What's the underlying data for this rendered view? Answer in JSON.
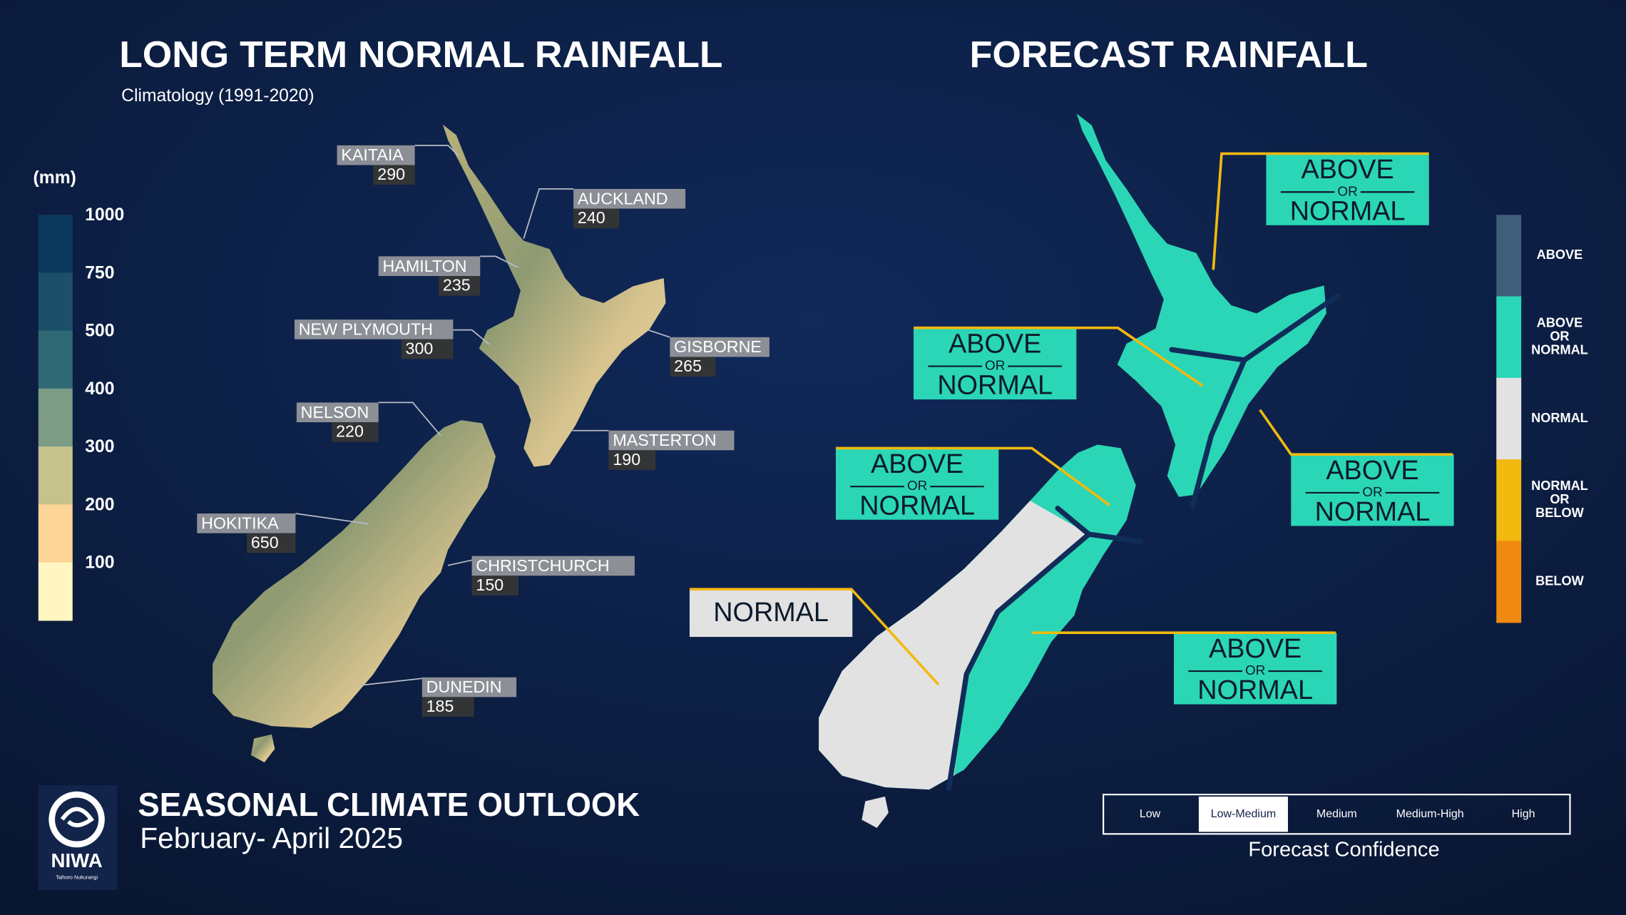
{
  "left_panel": {
    "title": "LONG TERM NORMAL RAINFALL",
    "subtitle": "Climatology (1991-2020)",
    "legend": {
      "unit": "(mm)",
      "ticks": [
        1000,
        750,
        500,
        400,
        300,
        200,
        100
      ],
      "colors": [
        "#0d3a5c",
        "#1b5068",
        "#2f6a74",
        "#7d9c86",
        "#c6c28c",
        "#fdd597",
        "#fff6c2"
      ]
    },
    "cities": [
      {
        "name": "KAITAIA",
        "rainfall": 290
      },
      {
        "name": "AUCKLAND",
        "rainfall": 240
      },
      {
        "name": "HAMILTON",
        "rainfall": 235
      },
      {
        "name": "NEW PLYMOUTH",
        "rainfall": 300
      },
      {
        "name": "GISBORNE",
        "rainfall": 265
      },
      {
        "name": "NELSON",
        "rainfall": 220
      },
      {
        "name": "MASTERTON",
        "rainfall": 190
      },
      {
        "name": "HOKITIKA",
        "rainfall": 650
      },
      {
        "name": "CHRISTCHURCH",
        "rainfall": 150
      },
      {
        "name": "DUNEDIN",
        "rainfall": 185
      }
    ]
  },
  "right_panel": {
    "title": "FORECAST RAINFALL",
    "regions": [
      {
        "lines": [
          "ABOVE",
          "OR",
          "NORMAL"
        ],
        "color": "#2ad6b5"
      },
      {
        "lines": [
          "ABOVE",
          "OR",
          "NORMAL"
        ],
        "color": "#2ad6b5"
      },
      {
        "lines": [
          "ABOVE",
          "OR",
          "NORMAL"
        ],
        "color": "#2ad6b5"
      },
      {
        "lines": [
          "ABOVE",
          "OR",
          "NORMAL"
        ],
        "color": "#2ad6b5"
      },
      {
        "lines": [
          "NORMAL"
        ],
        "color": "#e2e2e2"
      },
      {
        "lines": [
          "ABOVE",
          "OR",
          "NORMAL"
        ],
        "color": "#2ad6b5"
      }
    ],
    "legend": [
      {
        "lines": [
          "ABOVE"
        ],
        "color": "#3f5e7a"
      },
      {
        "lines": [
          "ABOVE",
          "OR",
          "NORMAL"
        ],
        "color": "#2ad6b5"
      },
      {
        "lines": [
          "NORMAL"
        ],
        "color": "#e2e2e2"
      },
      {
        "lines": [
          "NORMAL",
          "OR",
          "BELOW"
        ],
        "color": "#f2b90f"
      },
      {
        "lines": [
          "BELOW"
        ],
        "color": "#f08a10"
      }
    ],
    "confidence": {
      "levels": [
        "Low",
        "Low-Medium",
        "Medium",
        "Medium-High",
        "High"
      ],
      "selected_index": 1,
      "label": "Forecast Confidence"
    }
  },
  "footer": {
    "title": "SEASONAL CLIMATE OUTLOOK",
    "period": "February- April 2025",
    "logo": "NIWA",
    "logo_tagline": "Taihoro Nukurangi"
  }
}
